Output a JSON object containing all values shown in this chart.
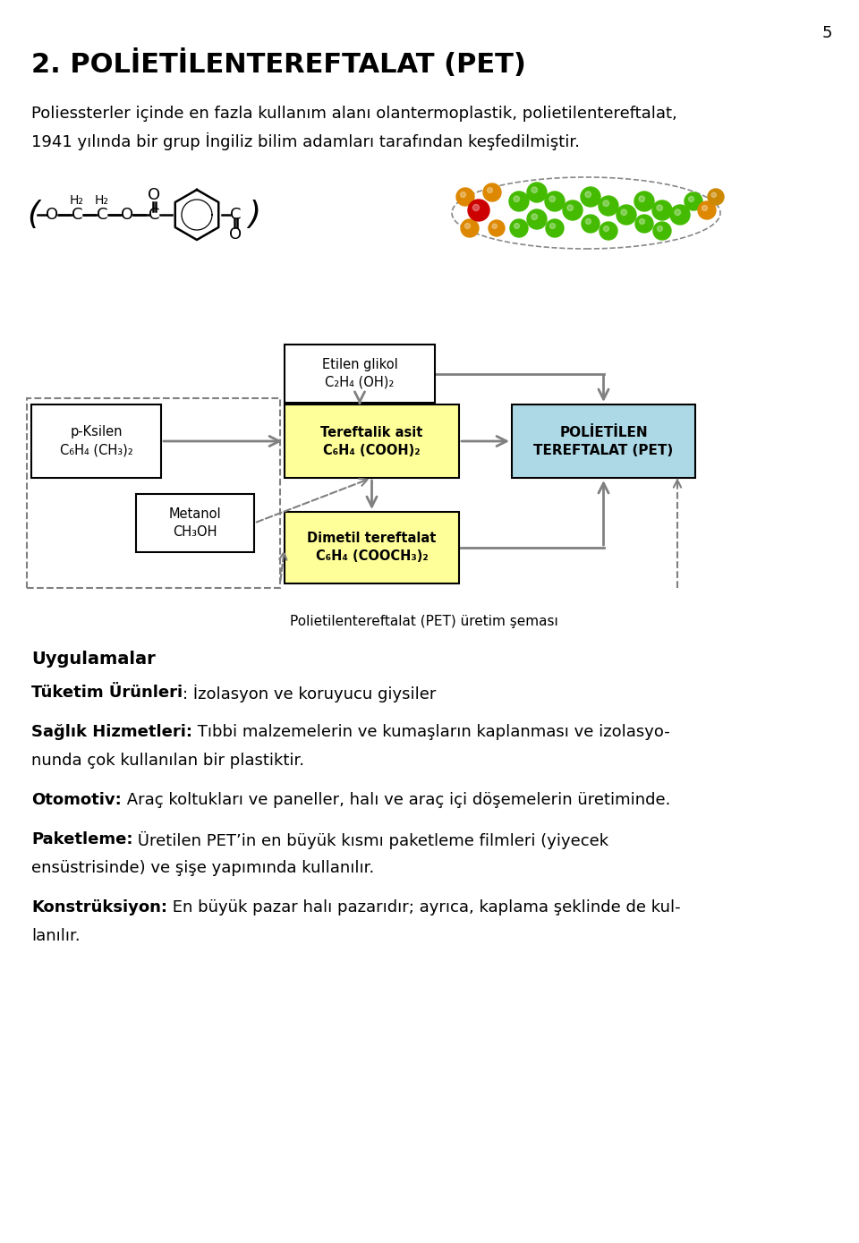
{
  "page_number": "5",
  "title": "2. POLİETİLENTEREFTALAT (PET)",
  "intro_text_line1": "Poliessterler içinde en fazla kullanım alanı olantermoplastik, polietilentereftalat,",
  "intro_text_line2": "1941 yılında bir grup İngiliz bilim adamları tarafından keşfedilmiştir.",
  "diagram_caption": "Polietilentereftalat (PET) üretim şeması",
  "box_p_ksilen_line1": "p-Ksilen",
  "box_p_ksilen_line2": "C₆H₄ (CH₃)₂",
  "box_metanol_line1": "Metanol",
  "box_metanol_line2": "CH₃OH",
  "box_etilen_line1": "Etilen glikol",
  "box_etilen_line2": "C₂H₄ (OH)₂",
  "box_teref_line1": "Tereftalik asit",
  "box_teref_line2": "C₆H₄ (COOH)₂",
  "box_dimetil_line1": "Dimetil tereftalat",
  "box_dimetil_line2": "C₆H₄ (COOCH₃)₂",
  "box_pet_line1": "POLİETİLEN",
  "box_pet_line2": "TEREFTALAT (PET)",
  "color_white": "#ffffff",
  "color_yellow": "#ffff99",
  "color_blue": "#add8e6",
  "color_black": "#000000",
  "color_arrow": "#808080",
  "section_title": "Uygulamalar",
  "para1_bold": "Tüketim Ürünleri",
  "para1_normal": ": İzolasyon ve koruyucu giysiler",
  "para2_bold": "Sağlık Hizmetleri:",
  "para2_normal": " Tıbbi malzemelerin ve kumaşların kaplanması ve izolasyo-",
  "para2_normal2": "nunda çok kullanılan bir plastiktir.",
  "para3_bold": "Otomotiv:",
  "para3_normal": " Araç koltukları ve paneller, halı ve araç içi döşemelerin üretiminde.",
  "para4_bold": "Paketleme:",
  "para4_normal": " Üretilen PET’in en büyük kısmı paketleme filmleri (yiyecek",
  "para4_normal2": "ensüstrisinde) ve şişe yapımında kullanılır.",
  "para5_bold": "Konstrüksiyon:",
  "para5_normal": " En büyük pazar halı pazarıdır; ayrıca, kaplama şeklinde de kul-",
  "para5_normal2": "lanılır.",
  "background_color": "#ffffff",
  "font_size_title": 22,
  "font_size_body": 13,
  "font_size_diagram": 10.5,
  "font_size_box": 10.5
}
